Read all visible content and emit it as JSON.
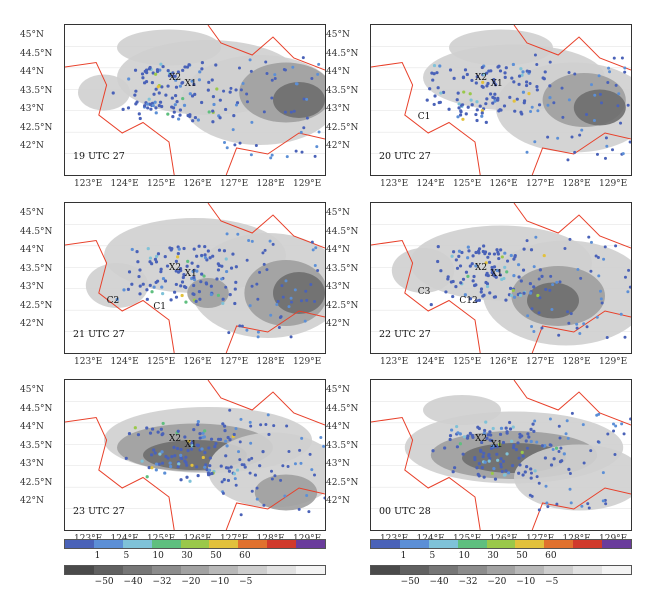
{
  "lat_labels": [
    "45°N",
    "44.5°N",
    "44°N",
    "43.5°N",
    "43°N",
    "42.5°N",
    "42°N"
  ],
  "lon_labels": [
    "123°E",
    "124°E",
    "125°E",
    "126°E",
    "127°E",
    "128°E",
    "129°E"
  ],
  "panels": [
    {
      "time": "19 UTC 27",
      "sites": [
        {
          "text": "X2",
          "fx": 0.4,
          "fy": 0.32
        },
        {
          "text": "X1",
          "fx": 0.46,
          "fy": 0.36
        }
      ]
    },
    {
      "time": "20 UTC 27",
      "sites": [
        {
          "text": "X2",
          "fx": 0.4,
          "fy": 0.32
        },
        {
          "text": "X1",
          "fx": 0.46,
          "fy": 0.36
        },
        {
          "text": "C1",
          "fx": 0.18,
          "fy": 0.58
        }
      ]
    },
    {
      "time": "21 UTC 27",
      "sites": [
        {
          "text": "X2",
          "fx": 0.4,
          "fy": 0.4
        },
        {
          "text": "X1",
          "fx": 0.46,
          "fy": 0.44
        },
        {
          "text": "C2",
          "fx": 0.16,
          "fy": 0.62
        },
        {
          "text": "C1",
          "fx": 0.34,
          "fy": 0.66
        }
      ]
    },
    {
      "time": "22 UTC 27",
      "sites": [
        {
          "text": "X2",
          "fx": 0.4,
          "fy": 0.4
        },
        {
          "text": "X1",
          "fx": 0.46,
          "fy": 0.44
        },
        {
          "text": "C3",
          "fx": 0.18,
          "fy": 0.56
        },
        {
          "text": "C12",
          "fx": 0.34,
          "fy": 0.62
        }
      ]
    },
    {
      "time": "23 UTC 27",
      "sites": [
        {
          "text": "X2",
          "fx": 0.4,
          "fy": 0.36
        },
        {
          "text": "X1",
          "fx": 0.46,
          "fy": 0.4
        }
      ]
    },
    {
      "time": "00 UTC 28",
      "sites": [
        {
          "text": "X2",
          "fx": 0.4,
          "fy": 0.36
        },
        {
          "text": "X1",
          "fx": 0.46,
          "fy": 0.4
        }
      ]
    }
  ],
  "lightning_scale": {
    "ticks": [
      "1",
      "5",
      "10",
      "30",
      "50",
      "60"
    ],
    "colors": [
      "#4a62b8",
      "#5c8fd6",
      "#7fc2d8",
      "#5fbf7f",
      "#9ac84a",
      "#e2c13c",
      "#e0712e",
      "#d03a2c",
      "#6a3c9c"
    ]
  },
  "brightness_temp_scale": {
    "ticks": [
      "−50",
      "−40",
      "−32",
      "−20",
      "−10",
      "−5"
    ],
    "colors": [
      "#4a4a4a",
      "#616161",
      "#767676",
      "#8c8c8c",
      "#a2a2a2",
      "#b8b8b8",
      "#cecece",
      "#e2e2e2",
      "#f4f4f4"
    ]
  },
  "colors": {
    "border": "#e8402a",
    "cloud_dark": "#6e6e6e",
    "cloud_mid": "#9e9e9e",
    "cloud_light": "#cfcfcf"
  }
}
